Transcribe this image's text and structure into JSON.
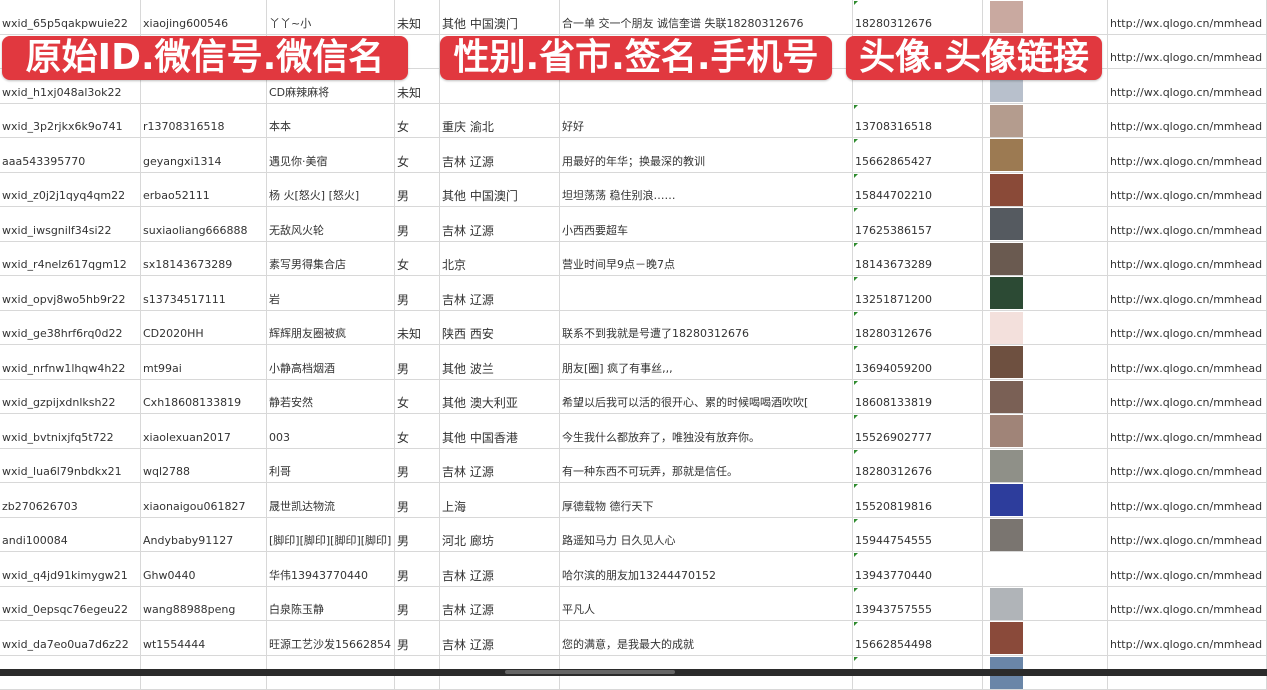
{
  "banners": [
    "原始ID.微信号.微信名",
    "性别.省市.签名.手机号",
    "头像.头像链接"
  ],
  "rows": [
    {
      "id": "wxid_65p5qakpwuie22",
      "wechat": "xiaojing600546",
      "name": "丫丫~小",
      "gender": "未知",
      "region": "其他 中国澳门",
      "signature": "合一单 交一个朋友 诚信奎谱 失联18280312676",
      "phone": "18280312676",
      "avatar_color": "#c9a9a0",
      "link": "http://wx.qlogo.cn/mmhead"
    },
    {
      "id": "",
      "wechat": "",
      "name": "",
      "gender": "",
      "region": "",
      "signature": "",
      "phone": "",
      "avatar_color": "#8a9bb8",
      "link": "http://wx.qlogo.cn/mmhead"
    },
    {
      "id": "wxid_h1xj048al3ok22",
      "wechat": "",
      "name": "CD麻辣麻将",
      "gender": "未知",
      "region": "",
      "signature": "",
      "phone": "",
      "avatar_color": "#b8c0cc",
      "link": "http://wx.qlogo.cn/mmhead"
    },
    {
      "id": "wxid_3p2rjkx6k9o741",
      "wechat": "r13708316518",
      "name": "本本",
      "gender": "女",
      "region": "重庆 渝北",
      "signature": "好好",
      "phone": "13708316518",
      "avatar_color": "#b49c8e",
      "link": "http://wx.qlogo.cn/mmhead"
    },
    {
      "id": "aaa543395770",
      "wechat": "geyangxi1314",
      "name": "遇见你·美宿",
      "gender": "女",
      "region": "吉林 辽源",
      "signature": "用最好的年华；换最深的教训",
      "phone": "15662865427",
      "avatar_color": "#9c7a52",
      "link": "http://wx.qlogo.cn/mmhead"
    },
    {
      "id": "wxid_z0j2j1qyq4qm22",
      "wechat": "erbao52111",
      "name": "杨 火[怒火] [怒火]",
      "gender": "男",
      "region": "其他 中国澳门",
      "signature": "坦坦荡荡 稳住别浪……",
      "phone": "15844702210",
      "avatar_color": "#8a4a38",
      "link": "http://wx.qlogo.cn/mmhead"
    },
    {
      "id": "wxid_iwsgnilf34si22",
      "wechat": "suxiaoliang666888",
      "name": "无敌风火轮",
      "gender": "男",
      "region": "吉林 辽源",
      "signature": "小西西要超车",
      "phone": "17625386157",
      "avatar_color": "#555a60",
      "link": "http://wx.qlogo.cn/mmhead"
    },
    {
      "id": "wxid_r4nelz617qgm12",
      "wechat": "sx18143673289",
      "name": "素写男得集合店",
      "gender": "女",
      "region": "北京",
      "signature": "营业时间早9点－晚7点",
      "phone": "18143673289",
      "avatar_color": "#6a5a50",
      "link": "http://wx.qlogo.cn/mmhead"
    },
    {
      "id": "wxid_opvj8wo5hb9r22",
      "wechat": "s13734517111",
      "name": "岩",
      "gender": "男",
      "region": "吉林 辽源",
      "signature": "",
      "phone": "13251871200",
      "avatar_color": "#2c4a34",
      "link": "http://wx.qlogo.cn/mmhead"
    },
    {
      "id": "wxid_ge38hrf6rq0d22",
      "wechat": "CD2020HH",
      "name": "辉辉朋友圈被疯",
      "gender": "未知",
      "region": "陕西 西安",
      "signature": "联系不到我就是号遭了18280312676",
      "phone": "18280312676",
      "avatar_color": "#f3e0dc",
      "link": "http://wx.qlogo.cn/mmhead"
    },
    {
      "id": "wxid_nrfnw1lhqw4h22",
      "wechat": "mt99ai",
      "name": "小静高档烟酒",
      "gender": "男",
      "region": "其他 波兰",
      "signature": "朋友[圈] 疯了有事丝,,,",
      "phone": "13694059200",
      "avatar_color": "#6e5040",
      "link": "http://wx.qlogo.cn/mmhead"
    },
    {
      "id": "wxid_gzpijxdnlksh22",
      "wechat": "Cxh18608133819",
      "name": "静若安然",
      "gender": "女",
      "region": "其他 澳大利亚",
      "signature": "希望以后我可以活的很开心、累的时候喝喝酒吹吹[",
      "phone": "18608133819",
      "avatar_color": "#7a6055",
      "link": "http://wx.qlogo.cn/mmhead"
    },
    {
      "id": "wxid_bvtnixjfq5t722",
      "wechat": "xiaolexuan2017",
      "name": "003",
      "gender": "女",
      "region": "其他 中国香港",
      "signature": "今生我什么都放弃了，唯独没有放弃你。",
      "phone": "15526902777",
      "avatar_color": "#a08478",
      "link": "http://wx.qlogo.cn/mmhead"
    },
    {
      "id": "wxid_lua6l79nbdkx21",
      "wechat": "wql2788",
      "name": "利哥",
      "gender": "男",
      "region": "吉林 辽源",
      "signature": "有一种东西不可玩弄，那就是信任。",
      "phone": "18280312676",
      "avatar_color": "#8f9088",
      "link": "http://wx.qlogo.cn/mmhead"
    },
    {
      "id": "zb270626703",
      "wechat": "xiaonaigou061827",
      "name": "晟世凯达物流",
      "gender": "男",
      "region": "上海",
      "signature": "厚德载物 德行天下",
      "phone": "15520819816",
      "avatar_color": "#2d3d9c",
      "link": "http://wx.qlogo.cn/mmhead"
    },
    {
      "id": "andi100084",
      "wechat": "Andybaby91127",
      "name": "[脚印][脚印][脚印][脚印]",
      "gender": "男",
      "region": "河北 廊坊",
      "signature": "路遥知马力 日久见人心",
      "phone": "15944754555",
      "avatar_color": "#7a7570",
      "link": "http://wx.qlogo.cn/mmhead"
    },
    {
      "id": "wxid_q4jd91kimygw21",
      "wechat": "Ghw0440",
      "name": "华伟13943770440",
      "gender": "男",
      "region": "吉林 辽源",
      "signature": "哈尔滨的朋友加13244470152",
      "phone": "13943770440",
      "avatar_color": "#ffffff",
      "link": "http://wx.qlogo.cn/mmhead"
    },
    {
      "id": "wxid_0epsqc76egeu22",
      "wechat": "wang88988peng",
      "name": "白泉陈玉静",
      "gender": "男",
      "region": "吉林 辽源",
      "signature": "平凡人",
      "phone": "13943757555",
      "avatar_color": "#b0b4b8",
      "link": "http://wx.qlogo.cn/mmhead"
    },
    {
      "id": "wxid_da7eo0ua7d6z22",
      "wechat": "wt1554444",
      "name": "旺源工艺沙发15662854",
      "gender": "男",
      "region": "吉林 辽源",
      "signature": "您的满意，是我最大的成就",
      "phone": "15662854498",
      "avatar_color": "#8a4a3a",
      "link": "http://wx.qlogo.cn/mmhead"
    },
    {
      "id": "",
      "wechat": "",
      "name": "",
      "gender": "",
      "region": "",
      "signature": "",
      "phone": "",
      "avatar_color": "#6a86a8",
      "link": ""
    }
  ]
}
